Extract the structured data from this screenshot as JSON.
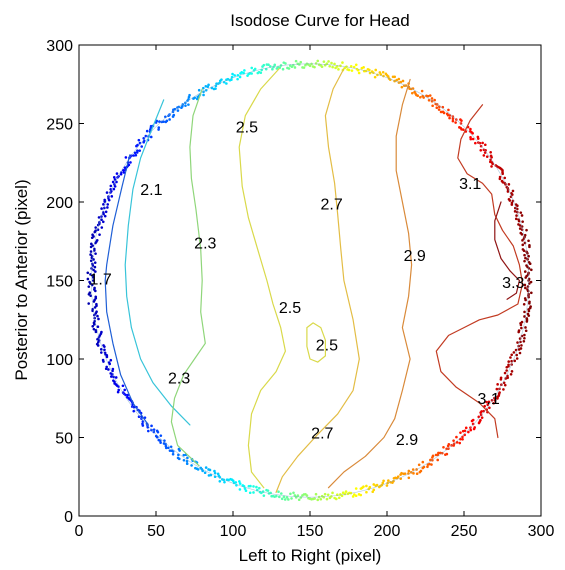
{
  "chart_data": {
    "type": "contour",
    "title": "Isodose Curve for Head",
    "xlabel": "Left to Right (pixel)",
    "ylabel": "Posterior to Anterior (pixel)",
    "xlim": [
      0,
      300
    ],
    "ylim": [
      0,
      300
    ],
    "xticks": [
      0,
      50,
      100,
      150,
      200,
      250,
      300
    ],
    "yticks": [
      0,
      50,
      100,
      150,
      200,
      250,
      300
    ],
    "grid": false,
    "boundary": {
      "center": [
        150,
        150
      ],
      "radius_x": 142,
      "radius_y": 138
    },
    "contours": [
      {
        "level": "1.7",
        "color": "#1f5fd6",
        "points": [
          [
            33,
            230
          ],
          [
            28,
            210
          ],
          [
            22,
            185
          ],
          [
            18,
            160
          ],
          [
            17,
            150
          ],
          [
            18,
            130
          ],
          [
            22,
            110
          ],
          [
            27,
            90
          ],
          [
            35,
            72
          ],
          [
            45,
            58
          ]
        ]
      },
      {
        "level": "2.1",
        "color": "#38c4d9",
        "points": [
          [
            55,
            265
          ],
          [
            48,
            248
          ],
          [
            40,
            228
          ],
          [
            35,
            208
          ],
          [
            32,
            185
          ],
          [
            30,
            160
          ],
          [
            31,
            140
          ],
          [
            34,
            120
          ],
          [
            40,
            100
          ],
          [
            48,
            85
          ],
          [
            60,
            70
          ],
          [
            72,
            58
          ]
        ]
      },
      {
        "level": "2.3",
        "color": "#8fd67a",
        "points": [
          [
            80,
            272
          ],
          [
            74,
            255
          ],
          [
            72,
            235
          ],
          [
            73,
            215
          ],
          [
            76,
            195
          ],
          [
            79,
            170
          ],
          [
            80,
            150
          ],
          [
            79,
            130
          ],
          [
            82,
            110
          ],
          [
            75,
            100
          ],
          [
            68,
            90
          ],
          [
            62,
            75
          ],
          [
            60,
            60
          ],
          [
            64,
            45
          ],
          [
            78,
            32
          ]
        ]
      },
      {
        "level": "2.5",
        "color": "#d9d94a",
        "points": [
          [
            130,
            285
          ],
          [
            118,
            272
          ],
          [
            108,
            255
          ],
          [
            104,
            235
          ],
          [
            106,
            210
          ],
          [
            110,
            190
          ],
          [
            116,
            170
          ],
          [
            122,
            150
          ],
          [
            126,
            135
          ],
          [
            131,
            120
          ],
          [
            134,
            105
          ],
          [
            128,
            92
          ],
          [
            118,
            80
          ],
          [
            112,
            65
          ],
          [
            110,
            45
          ],
          [
            112,
            28
          ],
          [
            120,
            18
          ]
        ]
      },
      {
        "level": "2.5",
        "color": "#d9d94a",
        "points": [
          [
            148,
            120
          ],
          [
            148,
            108
          ],
          [
            150,
            100
          ],
          [
            155,
            98
          ],
          [
            160,
            102
          ],
          [
            160,
            112
          ],
          [
            157,
            120
          ],
          [
            152,
            123
          ],
          [
            148,
            120
          ]
        ]
      },
      {
        "level": "2.7",
        "color": "#e3bd45",
        "points": [
          [
            172,
            285
          ],
          [
            165,
            272
          ],
          [
            160,
            255
          ],
          [
            162,
            235
          ],
          [
            166,
            212
          ],
          [
            168,
            192
          ],
          [
            170,
            170
          ],
          [
            172,
            150
          ],
          [
            178,
            125
          ],
          [
            182,
            100
          ],
          [
            178,
            80
          ],
          [
            168,
            65
          ],
          [
            155,
            52
          ],
          [
            142,
            38
          ],
          [
            132,
            25
          ],
          [
            128,
            15
          ]
        ]
      },
      {
        "level": "2.9",
        "color": "#d98a3a",
        "points": [
          [
            215,
            278
          ],
          [
            210,
            262
          ],
          [
            206,
            242
          ],
          [
            206,
            220
          ],
          [
            210,
            200
          ],
          [
            214,
            180
          ],
          [
            216,
            160
          ],
          [
            214,
            140
          ],
          [
            210,
            120
          ],
          [
            215,
            100
          ],
          [
            210,
            80
          ],
          [
            205,
            62
          ],
          [
            198,
            50
          ],
          [
            186,
            38
          ],
          [
            172,
            28
          ],
          [
            162,
            18
          ]
        ]
      },
      {
        "level": "3.1",
        "color": "#c23b22",
        "points": [
          [
            262,
            262
          ],
          [
            254,
            252
          ],
          [
            248,
            240
          ],
          [
            246,
            228
          ],
          [
            252,
            218
          ],
          [
            262,
            212
          ],
          [
            268,
            205
          ],
          [
            270,
            192
          ],
          [
            275,
            182
          ],
          [
            282,
            172
          ],
          [
            286,
            160
          ],
          [
            288,
            148
          ],
          [
            285,
            135
          ],
          [
            272,
            128
          ],
          [
            260,
            125
          ],
          [
            250,
            120
          ],
          [
            240,
            115
          ],
          [
            232,
            105
          ],
          [
            235,
            92
          ],
          [
            245,
            82
          ],
          [
            260,
            72
          ],
          [
            270,
            62
          ],
          [
            272,
            50
          ]
        ]
      },
      {
        "level": "3.3",
        "color": "#8f1414",
        "points": [
          [
            274,
            200
          ],
          [
            270,
            188
          ],
          [
            270,
            176
          ],
          [
            274,
            164
          ],
          [
            280,
            156
          ],
          [
            286,
            150
          ],
          [
            284,
            142
          ],
          [
            278,
            138
          ]
        ]
      }
    ],
    "labels": [
      {
        "text": "1.7",
        "x": 14,
        "y": 150
      },
      {
        "text": "2.1",
        "x": 47,
        "y": 207
      },
      {
        "text": "2.3",
        "x": 82,
        "y": 173
      },
      {
        "text": "2.3",
        "x": 65,
        "y": 87
      },
      {
        "text": "2.5",
        "x": 109,
        "y": 247
      },
      {
        "text": "2.5",
        "x": 137,
        "y": 132
      },
      {
        "text": "2.5",
        "x": 161,
        "y": 108
      },
      {
        "text": "2.7",
        "x": 164,
        "y": 198
      },
      {
        "text": "2.7",
        "x": 158,
        "y": 52
      },
      {
        "text": "2.9",
        "x": 218,
        "y": 165
      },
      {
        "text": "2.9",
        "x": 213,
        "y": 48
      },
      {
        "text": "3.1",
        "x": 254,
        "y": 211
      },
      {
        "text": "3.1",
        "x": 266,
        "y": 74
      },
      {
        "text": "3.3",
        "x": 282,
        "y": 148
      }
    ]
  }
}
